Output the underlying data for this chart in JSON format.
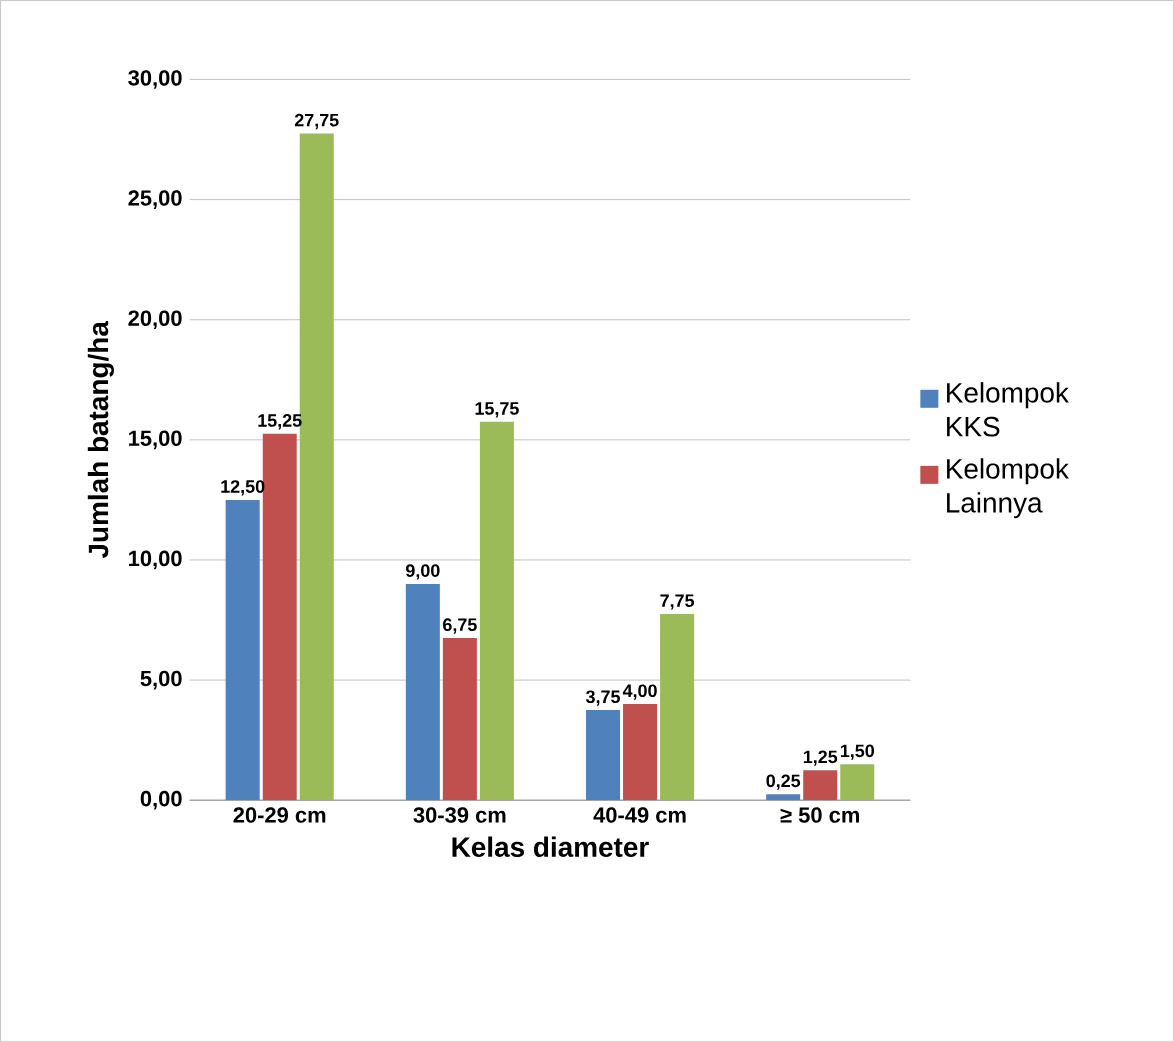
{
  "chart_data": {
    "type": "bar",
    "xlabel": "Kelas diameter",
    "ylabel": "Jumlah batang/ha",
    "categories": [
      "20-29 cm",
      "30-39 cm",
      "40-49 cm",
      "≥ 50 cm"
    ],
    "series": [
      {
        "name": "Kelompok KKS",
        "color": "#4f81bd",
        "values": [
          12.5,
          9.0,
          3.75,
          0.25
        ],
        "value_labels": [
          "12,50",
          "9,00",
          "3,75",
          "0,25"
        ]
      },
      {
        "name": "Kelompok Lainnya",
        "color": "#c0504d",
        "values": [
          15.25,
          6.75,
          4.0,
          1.25
        ],
        "value_labels": [
          "15,25",
          "6,75",
          "4,00",
          "1,25"
        ]
      },
      {
        "color": "#9bbb59",
        "values": [
          27.75,
          15.75,
          7.75,
          1.5
        ],
        "value_labels": [
          "27,75",
          "15,75",
          "7,75",
          "1,50"
        ]
      }
    ],
    "ylim": [
      0,
      30
    ],
    "yticks": [
      {
        "value": 0,
        "label": "0,00"
      },
      {
        "value": 5,
        "label": "5,00"
      },
      {
        "value": 10,
        "label": "10,00"
      },
      {
        "value": 15,
        "label": "15,00"
      },
      {
        "value": 20,
        "label": "20,00"
      },
      {
        "value": 25,
        "label": "25,00"
      },
      {
        "value": 30,
        "label": "30,00"
      }
    ],
    "grid": "y",
    "legend": "right"
  }
}
